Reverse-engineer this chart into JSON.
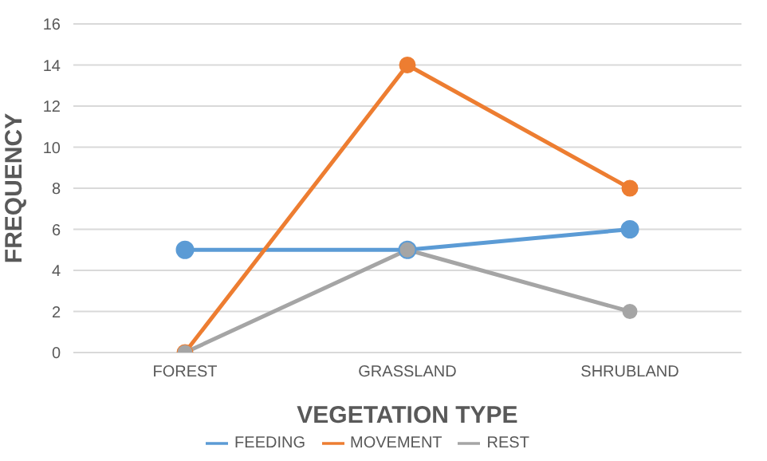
{
  "chart_data": {
    "type": "line",
    "xlabel": "VEGETATION TYPE",
    "ylabel": "FREQUENCY",
    "categories": [
      "FOREST",
      "GRASSLAND",
      "SHRUBLAND"
    ],
    "series": [
      {
        "name": "FEEDING",
        "color": "#5b9bd5",
        "values": [
          5,
          5,
          6
        ]
      },
      {
        "name": "MOVEMENT",
        "color": "#ed7d31",
        "values": [
          0,
          14,
          8
        ]
      },
      {
        "name": "REST",
        "color": "#a5a5a5",
        "values": [
          0,
          5,
          2
        ]
      }
    ],
    "ylim": [
      0,
      16
    ],
    "yticks": [
      0,
      2,
      4,
      6,
      8,
      10,
      12,
      14,
      16
    ],
    "grid": "y",
    "legend": "bottom",
    "marker": "circle",
    "line_style": "solid"
  }
}
